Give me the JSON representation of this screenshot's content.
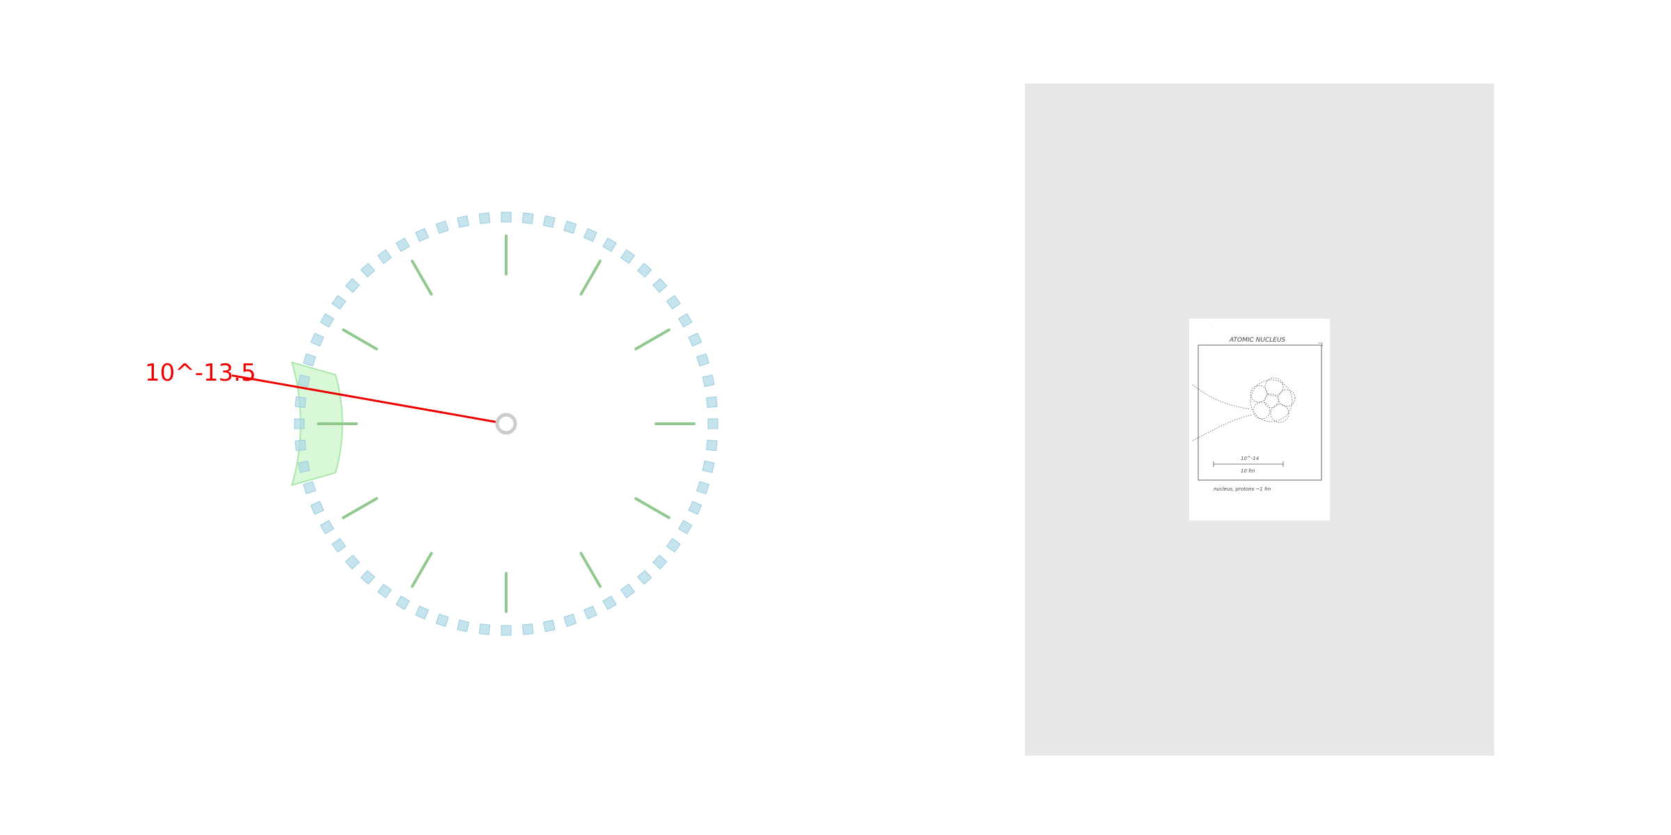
{
  "dial": {
    "readout": "10^-13.5",
    "pointer_angle_deg": 190,
    "highlight_angle_deg": 180,
    "minor_tick_count": 60,
    "major_tick_count": 12,
    "colors": {
      "minor_tick": "#add8e6",
      "major_tick": "#90c890",
      "highlight": "#c8f5c8",
      "pointer": "#ee0000",
      "readout": "#ee0000",
      "hub": "#cccccc"
    }
  },
  "document": {
    "title": "ATOMIC NUCLEUS",
    "scale_exponent": "10^-14",
    "scale_label": "10 fm",
    "caption": "nucleus, protons ~1 fm"
  }
}
